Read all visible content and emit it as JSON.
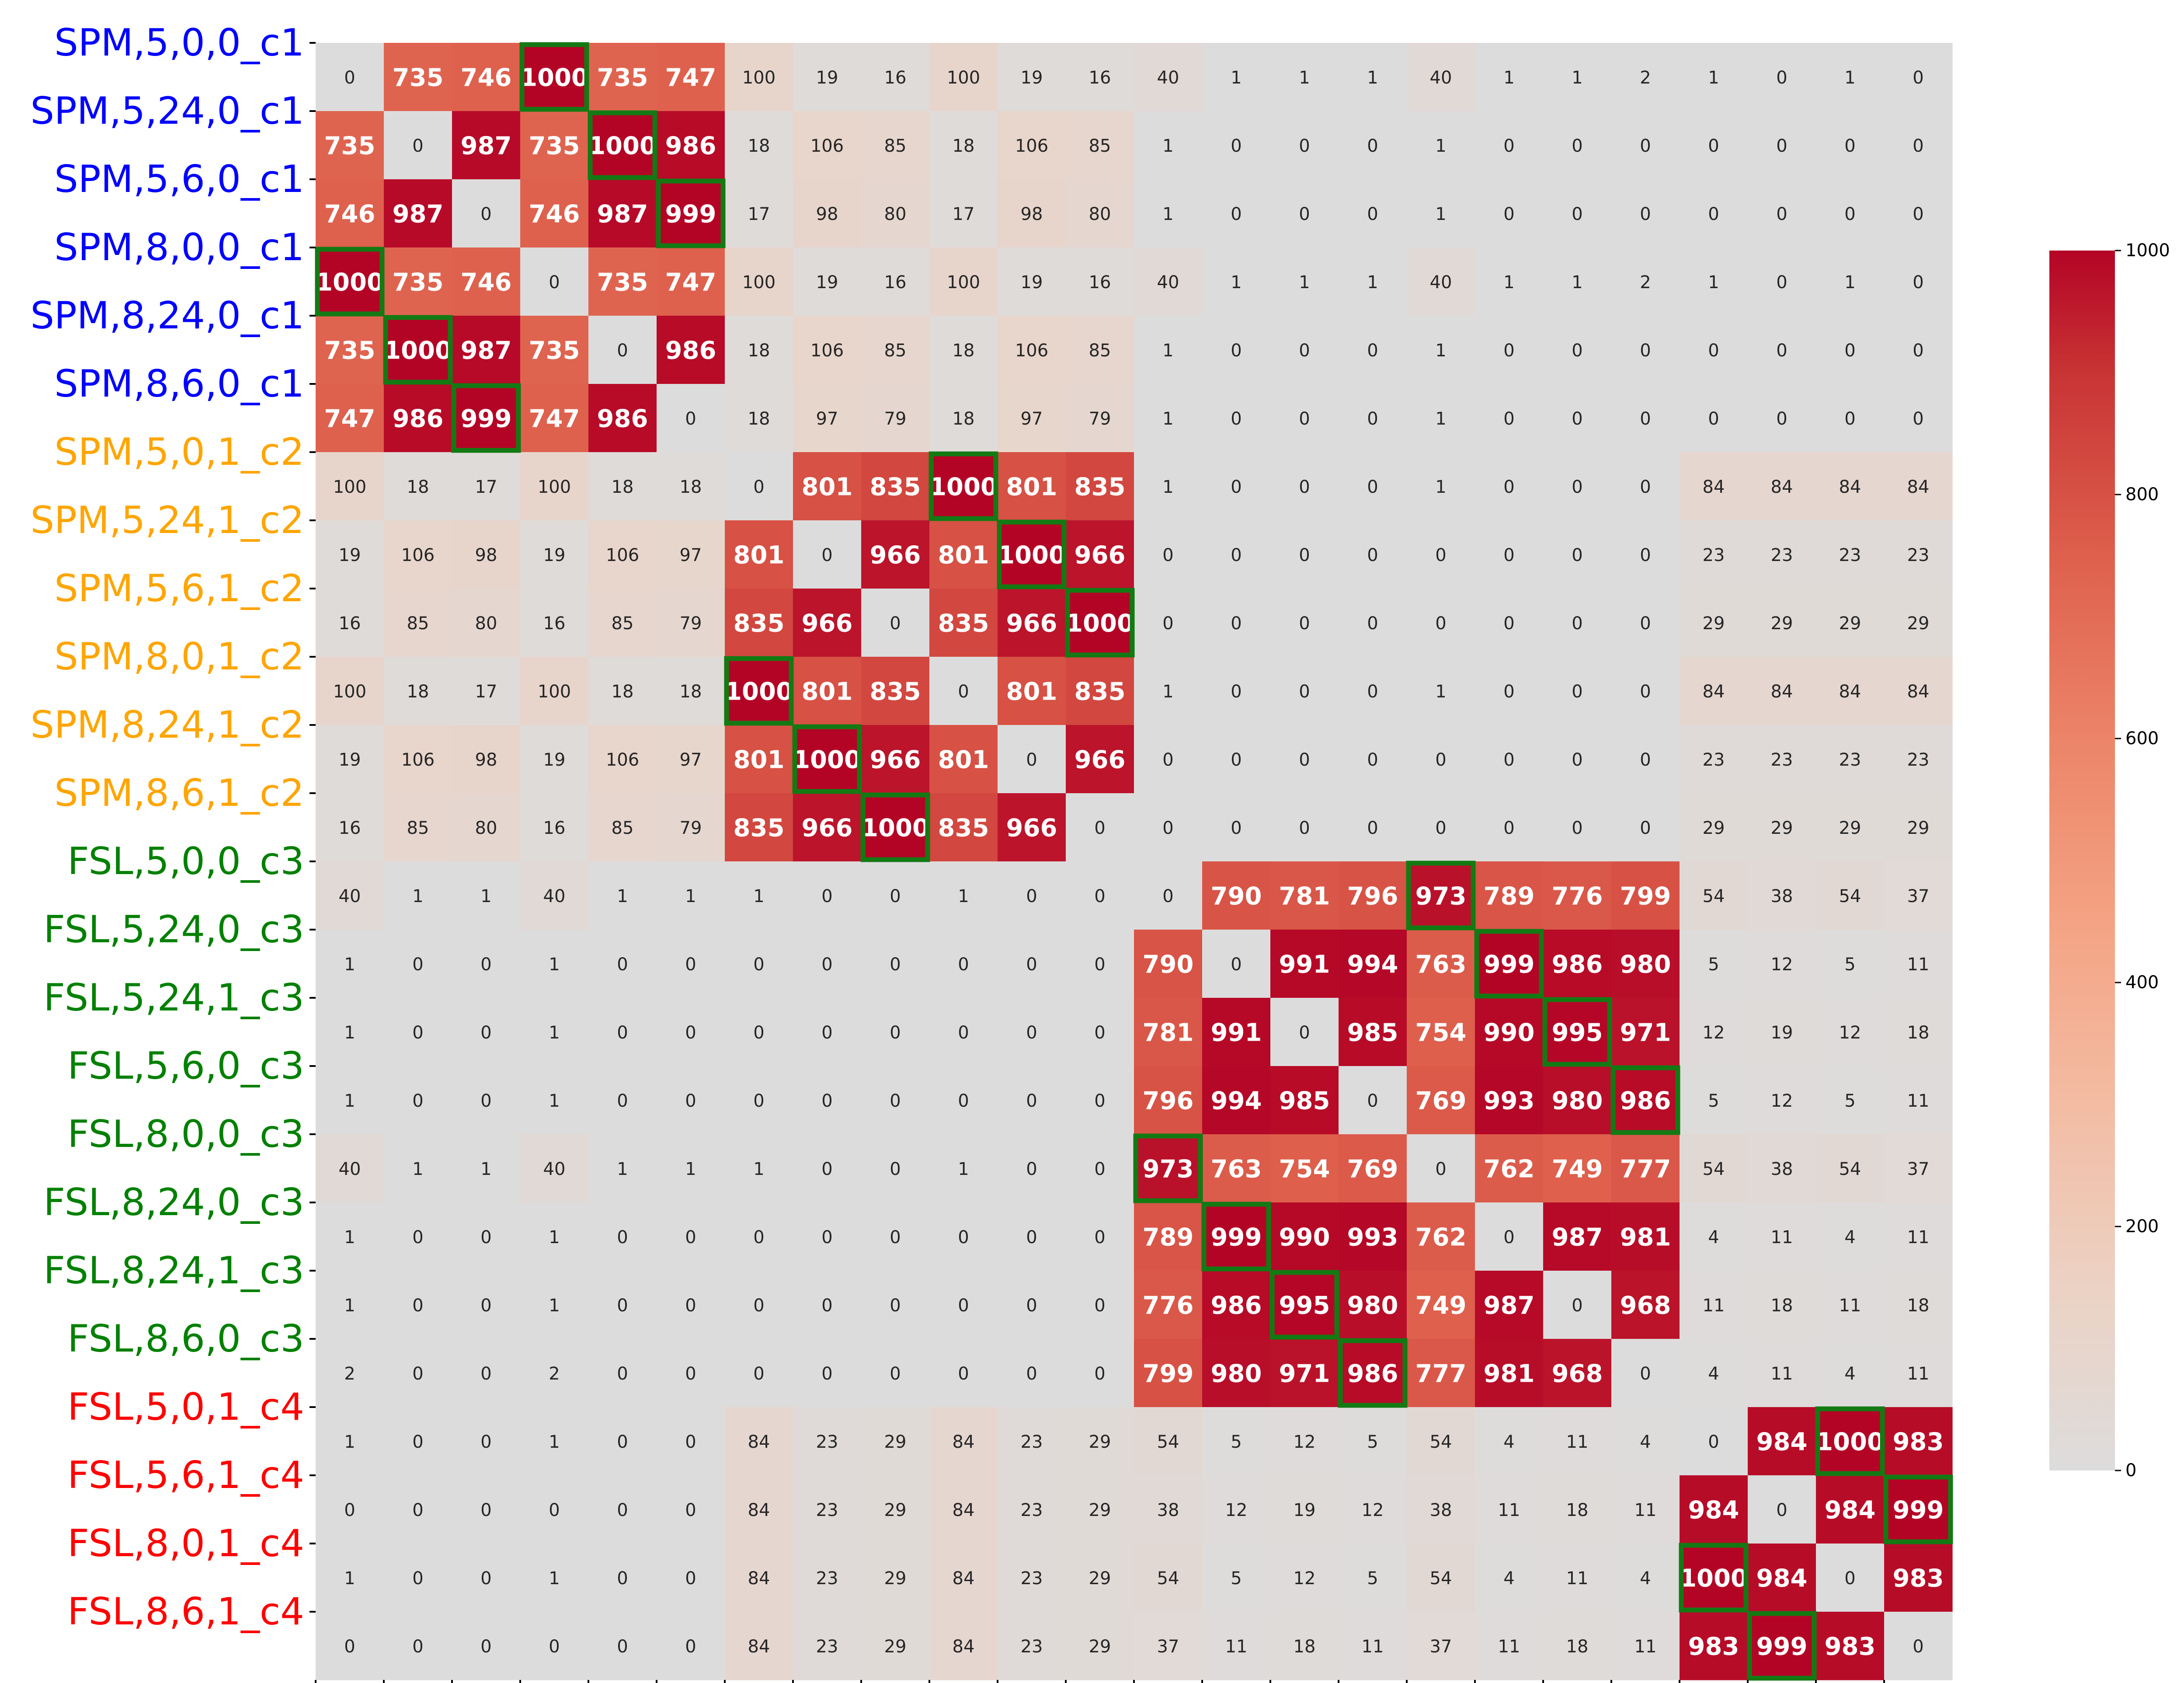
{
  "chart_data": {
    "type": "heatmap",
    "title": "",
    "xlabel": "",
    "ylabel": "",
    "row_labels": [
      "SPM,5,0,0_c1",
      "SPM,5,24,0_c1",
      "SPM,5,6,0_c1",
      "SPM,8,0,0_c1",
      "SPM,8,24,0_c1",
      "SPM,8,6,0_c1",
      "SPM,5,0,1_c2",
      "SPM,5,24,1_c2",
      "SPM,5,6,1_c2",
      "SPM,8,0,1_c2",
      "SPM,8,24,1_c2",
      "SPM,8,6,1_c2",
      "FSL,5,0,0_c3",
      "FSL,5,24,0_c3",
      "FSL,5,24,1_c3",
      "FSL,5,6,0_c3",
      "FSL,8,0,0_c3",
      "FSL,8,24,0_c3",
      "FSL,8,24,1_c3",
      "FSL,8,6,0_c3",
      "FSL,5,0,1_c4",
      "FSL,5,6,1_c4",
      "FSL,8,0,1_c4",
      "FSL,8,6,1_c4"
    ],
    "row_label_colors": [
      "#0000ff",
      "#0000ff",
      "#0000ff",
      "#0000ff",
      "#0000ff",
      "#0000ff",
      "#ffa500",
      "#ffa500",
      "#ffa500",
      "#ffa500",
      "#ffa500",
      "#ffa500",
      "#008000",
      "#008000",
      "#008000",
      "#008000",
      "#008000",
      "#008000",
      "#008000",
      "#008000",
      "#ff0000",
      "#ff0000",
      "#ff0000",
      "#ff0000"
    ],
    "values": [
      [
        0,
        735,
        746,
        1000,
        735,
        747,
        100,
        19,
        16,
        100,
        19,
        16,
        40,
        1,
        1,
        1,
        40,
        1,
        1,
        2,
        1,
        0,
        1,
        0
      ],
      [
        735,
        0,
        987,
        735,
        1000,
        986,
        18,
        106,
        85,
        18,
        106,
        85,
        1,
        0,
        0,
        0,
        1,
        0,
        0,
        0,
        0,
        0,
        0,
        0
      ],
      [
        746,
        987,
        0,
        746,
        987,
        999,
        17,
        98,
        80,
        17,
        98,
        80,
        1,
        0,
        0,
        0,
        1,
        0,
        0,
        0,
        0,
        0,
        0,
        0
      ],
      [
        1000,
        735,
        746,
        0,
        735,
        747,
        100,
        19,
        16,
        100,
        19,
        16,
        40,
        1,
        1,
        1,
        40,
        1,
        1,
        2,
        1,
        0,
        1,
        0
      ],
      [
        735,
        1000,
        987,
        735,
        0,
        986,
        18,
        106,
        85,
        18,
        106,
        85,
        1,
        0,
        0,
        0,
        1,
        0,
        0,
        0,
        0,
        0,
        0,
        0
      ],
      [
        747,
        986,
        999,
        747,
        986,
        0,
        18,
        97,
        79,
        18,
        97,
        79,
        1,
        0,
        0,
        0,
        1,
        0,
        0,
        0,
        0,
        0,
        0,
        0
      ],
      [
        100,
        18,
        17,
        100,
        18,
        18,
        0,
        801,
        835,
        1000,
        801,
        835,
        1,
        0,
        0,
        0,
        1,
        0,
        0,
        0,
        84,
        84,
        84,
        84
      ],
      [
        19,
        106,
        98,
        19,
        106,
        97,
        801,
        0,
        966,
        801,
        1000,
        966,
        0,
        0,
        0,
        0,
        0,
        0,
        0,
        0,
        23,
        23,
        23,
        23
      ],
      [
        16,
        85,
        80,
        16,
        85,
        79,
        835,
        966,
        0,
        835,
        966,
        1000,
        0,
        0,
        0,
        0,
        0,
        0,
        0,
        0,
        29,
        29,
        29,
        29
      ],
      [
        100,
        18,
        17,
        100,
        18,
        18,
        1000,
        801,
        835,
        0,
        801,
        835,
        1,
        0,
        0,
        0,
        1,
        0,
        0,
        0,
        84,
        84,
        84,
        84
      ],
      [
        19,
        106,
        98,
        19,
        106,
        97,
        801,
        1000,
        966,
        801,
        0,
        966,
        0,
        0,
        0,
        0,
        0,
        0,
        0,
        0,
        23,
        23,
        23,
        23
      ],
      [
        16,
        85,
        80,
        16,
        85,
        79,
        835,
        966,
        1000,
        835,
        966,
        0,
        0,
        0,
        0,
        0,
        0,
        0,
        0,
        0,
        29,
        29,
        29,
        29
      ],
      [
        40,
        1,
        1,
        40,
        1,
        1,
        1,
        0,
        0,
        1,
        0,
        0,
        0,
        790,
        781,
        796,
        973,
        789,
        776,
        799,
        54,
        38,
        54,
        37
      ],
      [
        1,
        0,
        0,
        1,
        0,
        0,
        0,
        0,
        0,
        0,
        0,
        0,
        790,
        0,
        991,
        994,
        763,
        999,
        986,
        980,
        5,
        12,
        5,
        11
      ],
      [
        1,
        0,
        0,
        1,
        0,
        0,
        0,
        0,
        0,
        0,
        0,
        0,
        781,
        991,
        0,
        985,
        754,
        990,
        995,
        971,
        12,
        19,
        12,
        18
      ],
      [
        1,
        0,
        0,
        1,
        0,
        0,
        0,
        0,
        0,
        0,
        0,
        0,
        796,
        994,
        985,
        0,
        769,
        993,
        980,
        986,
        5,
        12,
        5,
        11
      ],
      [
        40,
        1,
        1,
        40,
        1,
        1,
        1,
        0,
        0,
        1,
        0,
        0,
        973,
        763,
        754,
        769,
        0,
        762,
        749,
        777,
        54,
        38,
        54,
        37
      ],
      [
        1,
        0,
        0,
        1,
        0,
        0,
        0,
        0,
        0,
        0,
        0,
        0,
        789,
        999,
        990,
        993,
        762,
        0,
        987,
        981,
        4,
        11,
        4,
        11
      ],
      [
        1,
        0,
        0,
        1,
        0,
        0,
        0,
        0,
        0,
        0,
        0,
        0,
        776,
        986,
        995,
        980,
        749,
        987,
        0,
        968,
        11,
        18,
        11,
        18
      ],
      [
        2,
        0,
        0,
        2,
        0,
        0,
        0,
        0,
        0,
        0,
        0,
        0,
        799,
        980,
        971,
        986,
        777,
        981,
        968,
        0,
        4,
        11,
        4,
        11
      ],
      [
        1,
        0,
        0,
        1,
        0,
        0,
        84,
        23,
        29,
        84,
        23,
        29,
        54,
        5,
        12,
        5,
        54,
        4,
        11,
        4,
        0,
        984,
        1000,
        983
      ],
      [
        0,
        0,
        0,
        0,
        0,
        0,
        84,
        23,
        29,
        84,
        23,
        29,
        38,
        12,
        19,
        12,
        38,
        11,
        18,
        11,
        984,
        0,
        984,
        999
      ],
      [
        1,
        0,
        0,
        1,
        0,
        0,
        84,
        23,
        29,
        84,
        23,
        29,
        54,
        5,
        12,
        5,
        54,
        4,
        11,
        4,
        1000,
        984,
        0,
        983
      ],
      [
        0,
        0,
        0,
        0,
        0,
        0,
        84,
        23,
        29,
        84,
        23,
        29,
        37,
        11,
        18,
        11,
        37,
        11,
        18,
        11,
        983,
        999,
        983,
        0
      ]
    ],
    "highlighted_cells": [
      [
        0,
        3
      ],
      [
        1,
        4
      ],
      [
        2,
        5
      ],
      [
        3,
        0
      ],
      [
        4,
        1
      ],
      [
        5,
        2
      ],
      [
        6,
        9
      ],
      [
        7,
        10
      ],
      [
        8,
        11
      ],
      [
        9,
        6
      ],
      [
        10,
        7
      ],
      [
        11,
        8
      ],
      [
        12,
        16
      ],
      [
        13,
        17
      ],
      [
        14,
        18
      ],
      [
        15,
        19
      ],
      [
        16,
        12
      ],
      [
        17,
        13
      ],
      [
        18,
        14
      ],
      [
        19,
        15
      ],
      [
        20,
        22
      ],
      [
        21,
        23
      ],
      [
        22,
        20
      ],
      [
        23,
        21
      ]
    ],
    "highlight_color": "#137a13",
    "colorscale": {
      "min": 0,
      "max": 1000,
      "low_color": "#dcdcdc",
      "high_color": "#b40426",
      "name": "coolwarm (upper half)"
    },
    "colorbar_ticks": [
      0,
      200,
      400,
      600,
      800,
      1000
    ],
    "bold_threshold": 700,
    "grid": false,
    "legend": "colorbar-right"
  }
}
